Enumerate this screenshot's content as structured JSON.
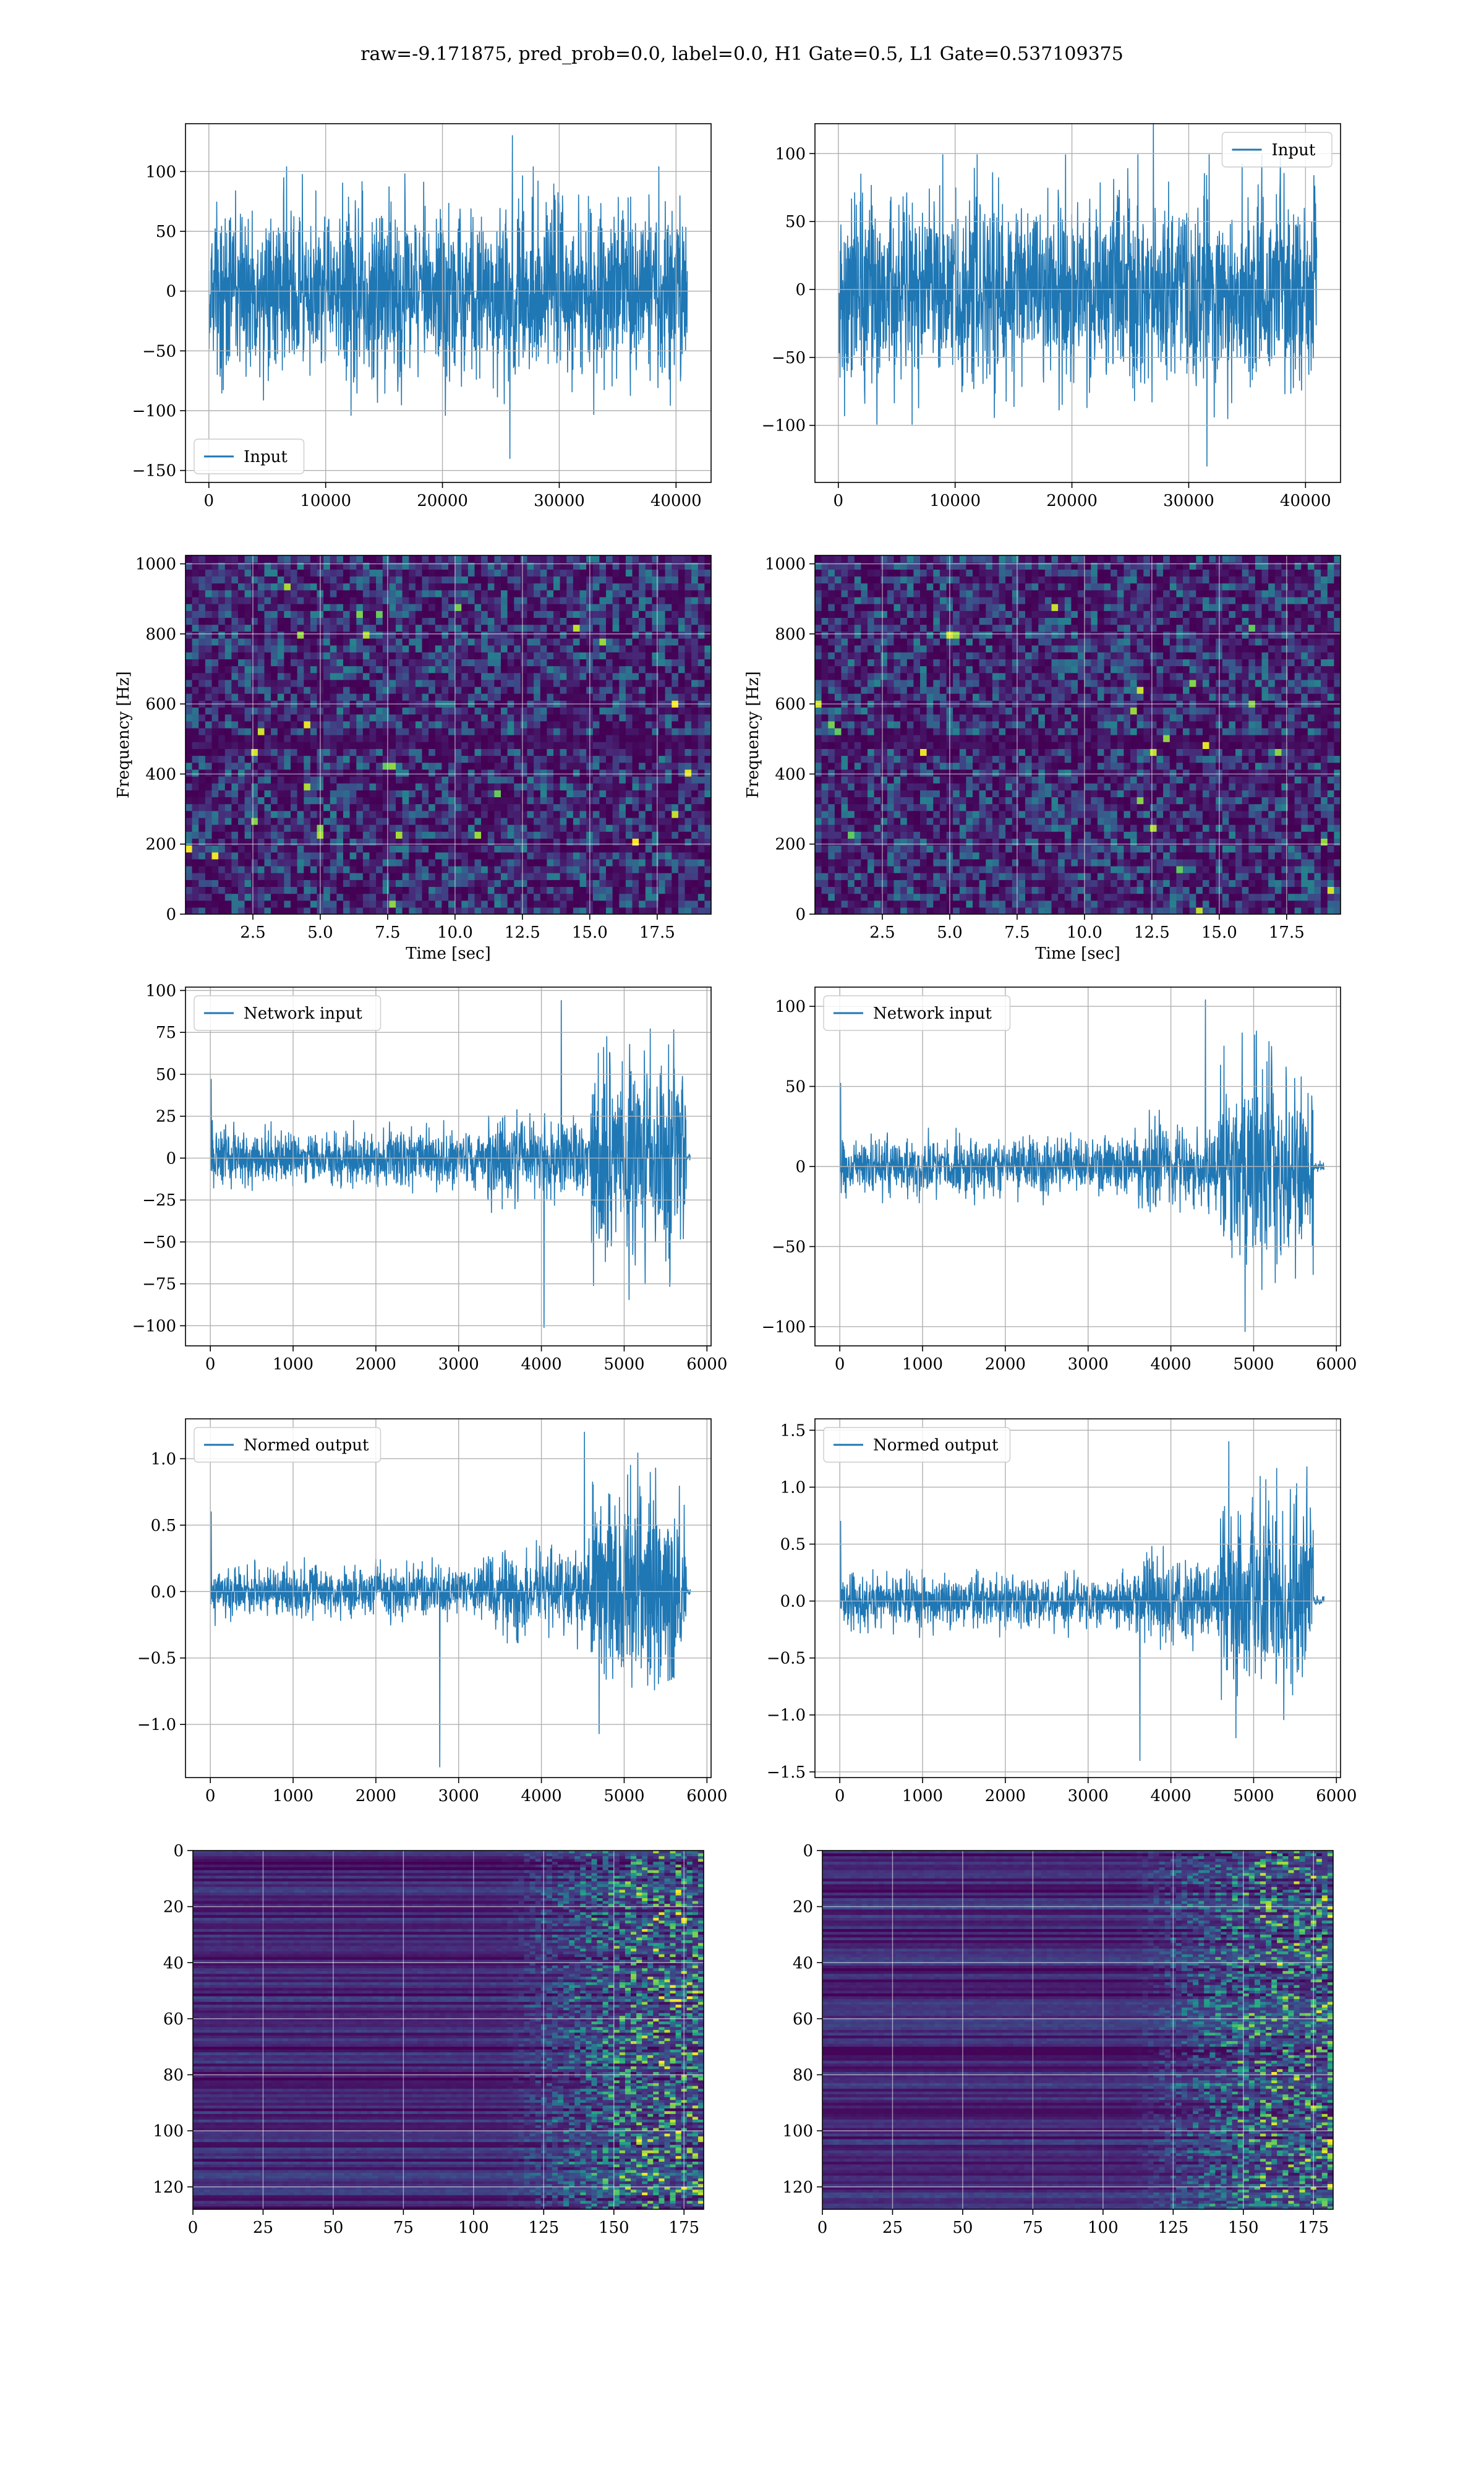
{
  "figure": {
    "title": "raw=-9.171875, pred_prob=0.0, label=0.0, H1 Gate=0.5, L1 Gate=0.537109375"
  },
  "chart_data": [
    {
      "id": "h1-input",
      "type": "line",
      "legend": "Input",
      "legend_loc": "lower-left",
      "xlim": [
        -2000,
        43000
      ],
      "ylim": [
        -160,
        140
      ],
      "xticks": [
        0,
        10000,
        20000,
        30000,
        40000
      ],
      "yticks": [
        -150,
        -100,
        -50,
        0,
        50,
        100
      ],
      "signal": {
        "x_start": 0,
        "x_end": 40960,
        "amp": 65,
        "grow": 0,
        "env_start": 0,
        "peak": 130,
        "min": -140
      },
      "grid": true
    },
    {
      "id": "l1-input",
      "type": "line",
      "legend": "Input",
      "legend_loc": "upper-right",
      "xlim": [
        -2000,
        43000
      ],
      "ylim": [
        -142,
        122
      ],
      "xticks": [
        0,
        10000,
        20000,
        30000,
        40000
      ],
      "yticks": [
        -100,
        -50,
        0,
        50,
        100
      ],
      "signal": {
        "x_start": 0,
        "x_end": 40960,
        "amp": 62,
        "grow": 0,
        "env_start": 0,
        "peak": 125,
        "min": -130
      },
      "grid": true
    },
    {
      "id": "h1-spectrogram",
      "type": "heatmap",
      "xlabel": "Time [sec]",
      "ylabel": "Frequency [Hz]",
      "xlim": [
        0,
        19.5
      ],
      "ylim": [
        0,
        1024
      ],
      "xticks": [
        2.5,
        5.0,
        7.5,
        10.0,
        12.5,
        15.0,
        17.5
      ],
      "yticks": [
        0,
        200,
        400,
        600,
        800,
        1000
      ],
      "colormap": "viridis",
      "grid": true
    },
    {
      "id": "l1-spectrogram",
      "type": "heatmap",
      "xlabel": "Time [sec]",
      "ylabel": "Frequency [Hz]",
      "xlim": [
        0,
        19.5
      ],
      "ylim": [
        0,
        1024
      ],
      "xticks": [
        2.5,
        5.0,
        7.5,
        10.0,
        12.5,
        15.0,
        17.5
      ],
      "yticks": [
        0,
        200,
        400,
        600,
        800,
        1000
      ],
      "colormap": "viridis",
      "grid": true
    },
    {
      "id": "h1-network-input",
      "type": "line",
      "legend": "Network input",
      "legend_loc": "upper-left",
      "xlim": [
        -300,
        6050
      ],
      "ylim": [
        -112,
        102
      ],
      "xticks": [
        0,
        1000,
        2000,
        3000,
        4000,
        5000,
        6000
      ],
      "yticks": [
        -100,
        -75,
        -50,
        -25,
        0,
        25,
        50,
        75,
        100
      ],
      "signal": {
        "x_start": 0,
        "x_end": 5800,
        "amp": 14,
        "step_x": 3350,
        "step_amp": 22,
        "burst_x": 4600,
        "burst_amp": 55,
        "end_x": 5750,
        "peak": 94,
        "min": -101
      },
      "grid": true
    },
    {
      "id": "l1-network-input",
      "type": "line",
      "legend": "Network input",
      "legend_loc": "upper-left",
      "xlim": [
        -300,
        6050
      ],
      "ylim": [
        -112,
        112
      ],
      "xticks": [
        0,
        1000,
        2000,
        3000,
        4000,
        5000,
        6000
      ],
      "yticks": [
        -100,
        -50,
        0,
        50,
        100
      ],
      "signal": {
        "x_start": 0,
        "x_end": 5850,
        "amp": 15,
        "step_x": 3600,
        "step_amp": 22,
        "burst_x": 4600,
        "burst_amp": 55,
        "end_x": 5720,
        "peak": 104,
        "min": -103
      },
      "grid": true
    },
    {
      "id": "h1-normed-output",
      "type": "line",
      "legend": "Normed output",
      "legend_loc": "upper-left",
      "xlim": [
        -300,
        6050
      ],
      "ylim": [
        -1.4,
        1.3
      ],
      "xticks": [
        0,
        1000,
        2000,
        3000,
        4000,
        5000,
        6000
      ],
      "yticks": [
        -1.0,
        -0.5,
        0.0,
        0.5,
        1.0
      ],
      "signal": {
        "x_start": 0,
        "x_end": 5800,
        "amp": 0.16,
        "step_x": 3350,
        "step_amp": 0.27,
        "burst_x": 4600,
        "burst_amp": 0.68,
        "end_x": 5750,
        "peak": 1.2,
        "min": -1.32
      },
      "grid": true
    },
    {
      "id": "l1-normed-output",
      "type": "line",
      "legend": "Normed output",
      "legend_loc": "upper-left",
      "xlim": [
        -300,
        6050
      ],
      "ylim": [
        -1.55,
        1.6
      ],
      "xticks": [
        0,
        1000,
        2000,
        3000,
        4000,
        5000,
        6000
      ],
      "yticks": [
        -1.5,
        -1.0,
        -0.5,
        0.0,
        0.5,
        1.0,
        1.5
      ],
      "signal": {
        "x_start": 0,
        "x_end": 5850,
        "amp": 0.2,
        "step_x": 3600,
        "step_amp": 0.3,
        "burst_x": 4600,
        "burst_amp": 0.75,
        "end_x": 5720,
        "peak": 1.4,
        "min": -1.4
      },
      "grid": true
    },
    {
      "id": "h1-feature-map",
      "type": "heatmap",
      "xlim": [
        0,
        182
      ],
      "ylim": [
        128,
        0
      ],
      "xticks": [
        0,
        25,
        50,
        75,
        100,
        125,
        150,
        175
      ],
      "yticks": [
        0,
        20,
        40,
        60,
        80,
        100,
        120
      ],
      "colormap": "viridis",
      "grid": true
    },
    {
      "id": "l1-feature-map",
      "type": "heatmap",
      "xlim": [
        0,
        182
      ],
      "ylim": [
        128,
        0
      ],
      "xticks": [
        0,
        25,
        50,
        75,
        100,
        125,
        150,
        175
      ],
      "yticks": [
        0,
        20,
        40,
        60,
        80,
        100,
        120
      ],
      "colormap": "viridis",
      "grid": true
    }
  ]
}
